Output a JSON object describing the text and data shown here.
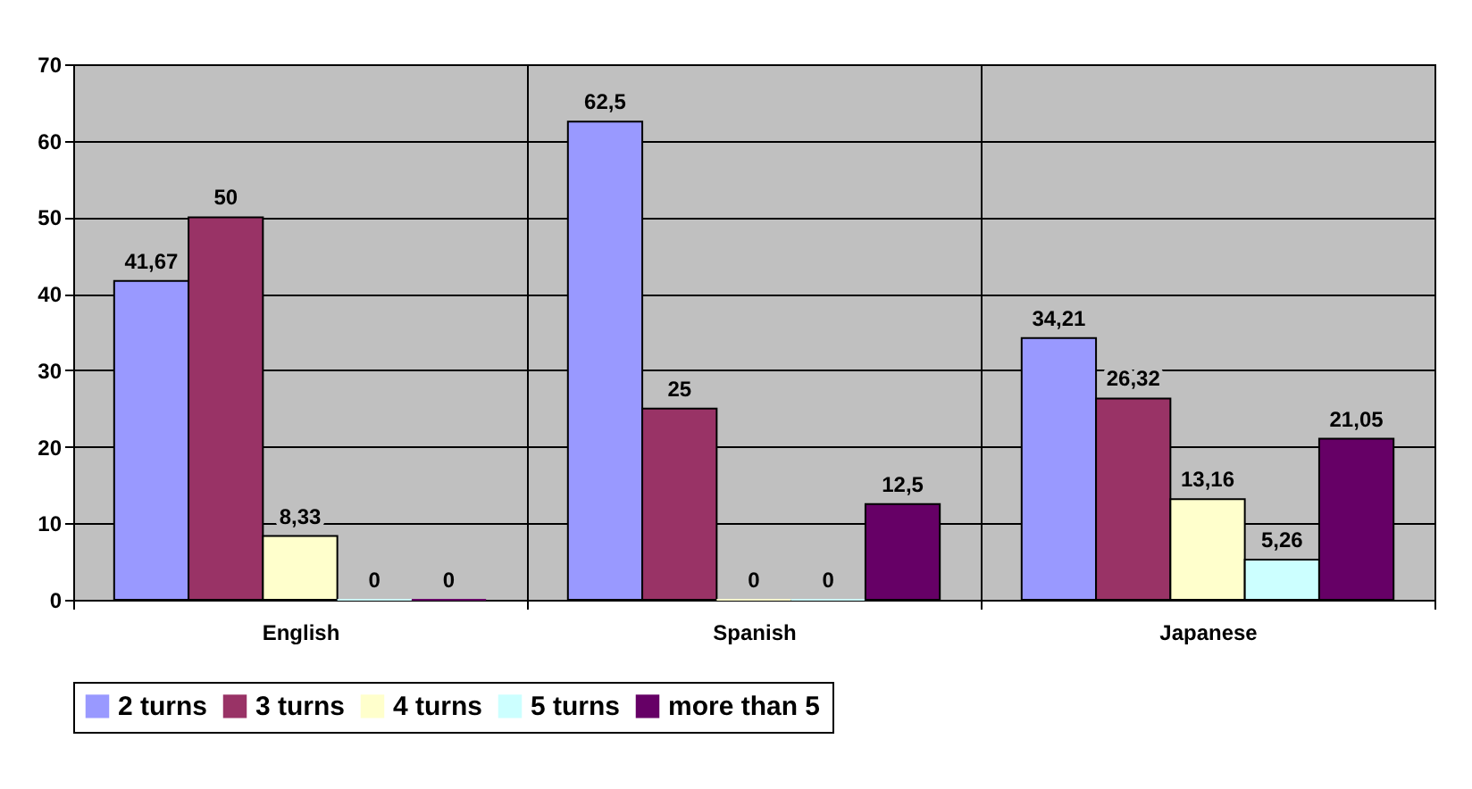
{
  "chart_data": {
    "type": "bar",
    "categories": [
      "English",
      "Spanish",
      "Japanese"
    ],
    "series": [
      {
        "name": "2 turns",
        "color": "#9999ff",
        "values": [
          41.67,
          62.5,
          34.21
        ],
        "value_labels": [
          "41,67",
          "62,5",
          "34,21"
        ]
      },
      {
        "name": "3 turns",
        "color": "#993366",
        "values": [
          50,
          25,
          26.32
        ],
        "value_labels": [
          "50",
          "25",
          "26,32"
        ]
      },
      {
        "name": "4 turns",
        "color": "#ffffcc",
        "values": [
          8.33,
          0,
          13.16
        ],
        "value_labels": [
          "8,33",
          "0",
          "13,16"
        ]
      },
      {
        "name": "5 turns",
        "color": "#ccffff",
        "values": [
          0,
          0,
          5.26
        ],
        "value_labels": [
          "0",
          "0",
          "5,26"
        ]
      },
      {
        "name": "more than 5",
        "color": "#660066",
        "values": [
          0,
          12.5,
          21.05
        ],
        "value_labels": [
          "0",
          "12,5",
          "21,05"
        ]
      }
    ],
    "ylim": [
      0,
      70
    ],
    "yticks": [
      0,
      10,
      20,
      30,
      40,
      50,
      60,
      70
    ],
    "grid": true,
    "legend": "bottom"
  }
}
